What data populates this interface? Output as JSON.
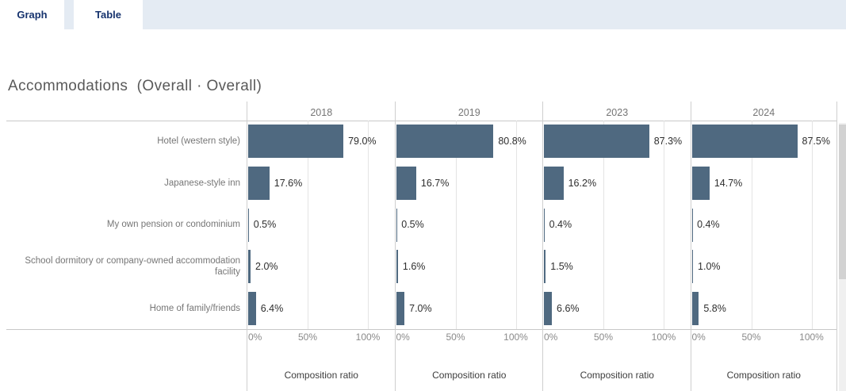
{
  "tabs": [
    {
      "label": "Graph"
    },
    {
      "label": "Table"
    }
  ],
  "title": "Accommodations  (Overall · Overall)",
  "chart_data": {
    "type": "bar",
    "orientation": "horizontal",
    "title": "Accommodations  (Overall · Overall)",
    "categories": [
      "Hotel (western style)",
      "Japanese-style inn",
      "My own pension or condominium",
      "School dormitory or company-owned accommodation facility",
      "Home of family/friends"
    ],
    "series": [
      {
        "name": "2018",
        "values": [
          79.0,
          17.6,
          0.5,
          2.0,
          6.4
        ],
        "labels": [
          "79.0%",
          "17.6%",
          "0.5%",
          "2.0%",
          "6.4%"
        ]
      },
      {
        "name": "2019",
        "values": [
          80.8,
          16.7,
          0.5,
          1.6,
          7.0
        ],
        "labels": [
          "80.8%",
          "16.7%",
          "0.5%",
          "1.6%",
          "7.0%"
        ]
      },
      {
        "name": "2023",
        "values": [
          87.3,
          16.2,
          0.4,
          1.5,
          6.6
        ],
        "labels": [
          "87.3%",
          "16.2%",
          "0.4%",
          "1.5%",
          "6.6%"
        ]
      },
      {
        "name": "2024",
        "values": [
          87.5,
          14.7,
          0.4,
          1.0,
          5.8
        ],
        "labels": [
          "87.5%",
          "14.7%",
          "0.4%",
          "1.0%",
          "5.8%"
        ]
      }
    ],
    "xlabel": "Composition ratio",
    "x_ticks": [
      "0%",
      "50%",
      "100%"
    ],
    "xlim": [
      0,
      100
    ],
    "grid": true,
    "bar_color": "#4f6980"
  }
}
